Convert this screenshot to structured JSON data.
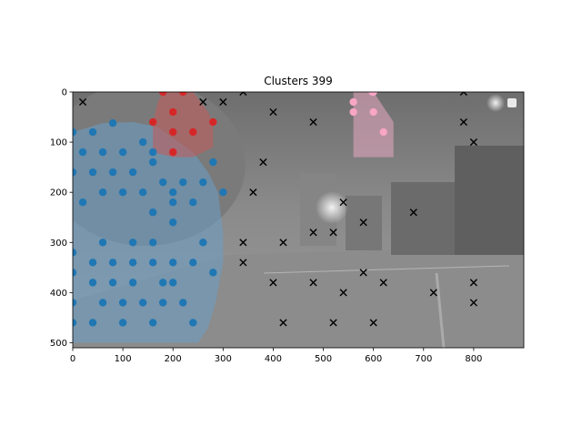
{
  "chart_data": {
    "type": "scatter",
    "title": "Clusters 399",
    "xlim": [
      0,
      900
    ],
    "ylim": [
      510,
      0
    ],
    "y_inverted": true,
    "x_ticks": [
      0,
      100,
      200,
      300,
      400,
      500,
      600,
      700,
      800
    ],
    "y_ticks": [
      0,
      100,
      200,
      300,
      400,
      500
    ],
    "background": "grayscale street scene at night",
    "clusters": [
      {
        "color": "#1f77b4",
        "hull_color": "#6a9ec6",
        "hull": [
          [
            0,
            80
          ],
          [
            60,
            62
          ],
          [
            120,
            60
          ],
          [
            170,
            70
          ],
          [
            240,
            120
          ],
          [
            270,
            160
          ],
          [
            290,
            200
          ],
          [
            300,
            280
          ],
          [
            300,
            340
          ],
          [
            285,
            420
          ],
          [
            270,
            470
          ],
          [
            250,
            500
          ],
          [
            0,
            500
          ]
        ],
        "points": [
          [
            80,
            62
          ],
          [
            0,
            80
          ],
          [
            40,
            80
          ],
          [
            140,
            100
          ],
          [
            20,
            120
          ],
          [
            60,
            120
          ],
          [
            100,
            120
          ],
          [
            160,
            120
          ],
          [
            160,
            140
          ],
          [
            0,
            160
          ],
          [
            40,
            160
          ],
          [
            80,
            160
          ],
          [
            120,
            160
          ],
          [
            180,
            180
          ],
          [
            220,
            180
          ],
          [
            260,
            180
          ],
          [
            60,
            200
          ],
          [
            100,
            200
          ],
          [
            140,
            200
          ],
          [
            200,
            200
          ],
          [
            20,
            220
          ],
          [
            200,
            220
          ],
          [
            240,
            220
          ],
          [
            160,
            240
          ],
          [
            200,
            260
          ],
          [
            60,
            300
          ],
          [
            120,
            300
          ],
          [
            160,
            300
          ],
          [
            260,
            300
          ],
          [
            0,
            320
          ],
          [
            40,
            340
          ],
          [
            80,
            340
          ],
          [
            120,
            340
          ],
          [
            160,
            340
          ],
          [
            200,
            340
          ],
          [
            240,
            340
          ],
          [
            0,
            360
          ],
          [
            40,
            380
          ],
          [
            80,
            380
          ],
          [
            120,
            380
          ],
          [
            180,
            380
          ],
          [
            60,
            420
          ],
          [
            100,
            420
          ],
          [
            140,
            420
          ],
          [
            180,
            420
          ],
          [
            220,
            420
          ],
          [
            0,
            420
          ],
          [
            0,
            460
          ],
          [
            40,
            460
          ],
          [
            100,
            460
          ],
          [
            160,
            460
          ],
          [
            240,
            460
          ],
          [
            280,
            140
          ],
          [
            300,
            200
          ],
          [
            280,
            360
          ],
          [
            200,
            380
          ]
        ]
      },
      {
        "color": "#d62728",
        "hull_color": "#c45a5a",
        "hull": [
          [
            180,
            0
          ],
          [
            240,
            0
          ],
          [
            270,
            40
          ],
          [
            280,
            60
          ],
          [
            280,
            110
          ],
          [
            240,
            130
          ],
          [
            200,
            130
          ],
          [
            160,
            120
          ],
          [
            160,
            60
          ],
          [
            170,
            20
          ]
        ],
        "points": [
          [
            180,
            0
          ],
          [
            220,
            0
          ],
          [
            200,
            40
          ],
          [
            160,
            60
          ],
          [
            280,
            60
          ],
          [
            200,
            80
          ],
          [
            240,
            80
          ],
          [
            200,
            120
          ]
        ]
      },
      {
        "color": "#f7a6c4",
        "hull_color": "#e8a8c0",
        "hull": [
          [
            560,
            0
          ],
          [
            600,
            0
          ],
          [
            640,
            60
          ],
          [
            640,
            130
          ],
          [
            560,
            130
          ],
          [
            560,
            40
          ]
        ],
        "points": [
          [
            600,
            0
          ],
          [
            560,
            20
          ],
          [
            560,
            40
          ],
          [
            600,
            40
          ],
          [
            620,
            80
          ],
          [
            598,
            0
          ]
        ]
      }
    ],
    "noise": {
      "marker": "x",
      "color": "#000000",
      "points": [
        [
          20,
          20
        ],
        [
          260,
          20
        ],
        [
          300,
          20
        ],
        [
          340,
          0
        ],
        [
          780,
          0
        ],
        [
          400,
          40
        ],
        [
          480,
          60
        ],
        [
          780,
          60
        ],
        [
          800,
          100
        ],
        [
          380,
          140
        ],
        [
          360,
          200
        ],
        [
          540,
          220
        ],
        [
          580,
          260
        ],
        [
          680,
          240
        ],
        [
          340,
          300
        ],
        [
          420,
          300
        ],
        [
          480,
          280
        ],
        [
          520,
          280
        ],
        [
          340,
          340
        ],
        [
          580,
          360
        ],
        [
          400,
          380
        ],
        [
          480,
          380
        ],
        [
          620,
          380
        ],
        [
          800,
          380
        ],
        [
          540,
          400
        ],
        [
          720,
          400
        ],
        [
          800,
          420
        ],
        [
          420,
          460
        ],
        [
          520,
          460
        ],
        [
          600,
          460
        ]
      ]
    }
  }
}
